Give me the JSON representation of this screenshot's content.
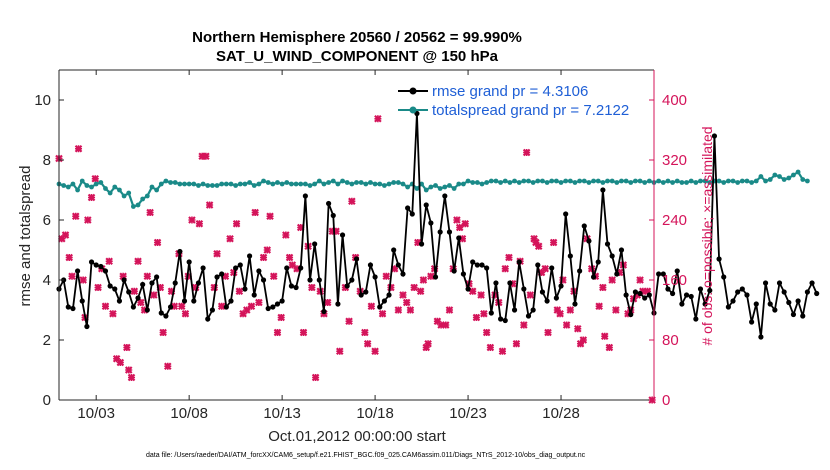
{
  "chart_data": {
    "type": "line",
    "title": "Northern Hemisphere 20560 / 20562 = 99.990%",
    "subtitle": "SAT_U_WIND_COMPONENT @ 150 hPa",
    "xlabel": "Oct.01,2012 00:00:00 start",
    "ylabel": "rmse and totalspread",
    "ylabel_right": "# of obs: o=possible; ×=assimilated",
    "xlim": [
      1,
      33
    ],
    "ylim": [
      0,
      11
    ],
    "ylim_right": [
      0,
      440
    ],
    "x_tick_labels": [
      "10/03",
      "10/08",
      "10/13",
      "10/18",
      "10/23",
      "10/28"
    ],
    "x_tick_values": [
      3,
      8,
      13,
      18,
      23,
      28
    ],
    "y_ticks": [
      0,
      2,
      4,
      6,
      8,
      10
    ],
    "y_ticks_right": [
      0,
      80,
      160,
      240,
      320,
      400
    ],
    "legend_position": "top-right",
    "colors": {
      "rmse": "#000000",
      "spread": "#1a8a88",
      "obs": "#d4145a",
      "legend_text": "#1f5fd6",
      "right_axis": "#d4145a"
    },
    "series": [
      {
        "name": "rmse grand pr = 4.3106",
        "color": "#000000",
        "marker": "dot",
        "x_start": 1.0,
        "x_step": 0.25,
        "values": [
          3.7,
          4.0,
          3.1,
          3.05,
          4.3,
          3.3,
          2.45,
          4.6,
          4.5,
          4.45,
          4.3,
          3.8,
          3.7,
          3.3,
          4.0,
          3.6,
          3.1,
          3.4,
          3.85,
          3.0,
          3.9,
          4.1,
          2.9,
          2.8,
          3.1,
          3.9,
          4.95,
          3.3,
          4.6,
          3.3,
          3.9,
          4.4,
          2.7,
          3.0,
          4.1,
          4.2,
          3.1,
          3.3,
          4.4,
          4.5,
          3.7,
          4.8,
          3.5,
          4.3,
          4.0,
          3.05,
          3.1,
          3.2,
          3.3,
          4.4,
          3.8,
          3.75,
          4.4,
          6.8,
          4.0,
          5.2,
          4.0,
          2.95,
          6.55,
          6.15,
          3.2,
          5.5,
          3.8,
          4.0,
          4.7,
          3.5,
          3.6,
          4.5,
          4.1,
          3.1,
          3.3,
          3.5,
          5.0,
          4.5,
          4.2,
          6.4,
          6.2,
          9.55,
          5.2,
          6.5,
          5.9,
          4.1,
          5.6,
          6.8,
          5.6,
          4.3,
          5.4,
          4.2,
          3.7,
          4.6,
          4.5,
          4.5,
          4.4,
          2.9,
          3.9,
          2.7,
          2.65,
          3.9,
          3.0,
          4.6,
          3.7,
          2.8,
          3.0,
          4.5,
          3.6,
          3.3,
          4.4,
          3.4,
          3.8,
          6.2,
          4.8,
          3.2,
          4.3,
          5.8,
          5.3,
          4.1,
          4.6,
          7.0,
          5.2,
          4.8,
          4.2,
          5.0,
          3.5,
          2.85,
          3.6,
          3.55,
          3.4,
          3.5,
          2.9,
          4.2,
          4.2,
          3.7,
          3.55,
          4.3,
          3.2,
          3.5,
          3.45,
          2.7,
          3.7,
          3.2,
          3.65,
          8.8,
          4.7,
          4.1,
          3.1,
          3.3,
          3.6,
          3.7,
          3.5,
          2.6,
          3.2,
          2.1,
          3.9,
          3.2,
          3.0,
          3.9,
          3.6,
          3.25,
          2.85,
          3.3,
          2.8,
          3.6,
          3.9,
          3.55
        ]
      },
      {
        "name": "totalspread grand pr = 7.2122",
        "color": "#1a8a88",
        "marker": "dot",
        "x_start": 1.0,
        "x_step": 0.25,
        "values": [
          7.2,
          7.15,
          7.1,
          7.2,
          7.0,
          7.3,
          7.15,
          7.1,
          7.2,
          7.25,
          7.05,
          6.9,
          7.1,
          7.0,
          6.8,
          6.9,
          6.45,
          6.5,
          6.7,
          6.8,
          7.1,
          7.0,
          7.2,
          7.3,
          7.25,
          7.25,
          7.2,
          7.2,
          7.2,
          7.2,
          7.15,
          7.2,
          7.15,
          7.15,
          7.15,
          7.2,
          7.2,
          7.2,
          7.15,
          7.2,
          7.2,
          7.25,
          7.15,
          7.2,
          7.3,
          7.25,
          7.2,
          7.25,
          7.2,
          7.25,
          7.2,
          7.2,
          7.2,
          7.2,
          7.15,
          7.2,
          7.3,
          7.2,
          7.25,
          7.3,
          7.2,
          7.3,
          7.25,
          7.2,
          7.25,
          7.25,
          7.2,
          7.25,
          7.2,
          7.2,
          7.15,
          7.2,
          7.25,
          7.25,
          7.2,
          7.1,
          7.2,
          7.05,
          7.2,
          7.0,
          7.1,
          7.15,
          7.05,
          7.1,
          7.15,
          7.05,
          7.2,
          7.2,
          7.3,
          7.25,
          7.25,
          7.2,
          7.25,
          7.3,
          7.3,
          7.25,
          7.3,
          7.25,
          7.3,
          7.25,
          7.3,
          7.3,
          7.25,
          7.3,
          7.3,
          7.25,
          7.3,
          7.3,
          7.25,
          7.3,
          7.3,
          7.25,
          7.3,
          7.3,
          7.25,
          7.3,
          7.3,
          7.25,
          7.3,
          7.3,
          7.25,
          7.3,
          7.3,
          7.25,
          7.3,
          7.3,
          7.25,
          7.3,
          7.25,
          7.3,
          7.25,
          7.3,
          7.25,
          7.3,
          7.25,
          7.25,
          7.3,
          7.25,
          7.3,
          7.3,
          7.25,
          7.3,
          7.3,
          7.25,
          7.3,
          7.3,
          7.25,
          7.3,
          7.3,
          7.25,
          7.3,
          7.45,
          7.3,
          7.35,
          7.5,
          7.45,
          7.35,
          7.4,
          7.5,
          7.6,
          7.35,
          7.3
        ]
      },
      {
        "name": "# of obs assimilated",
        "color": "#d4145a",
        "marker": "x",
        "axis": "right",
        "points": [
          [
            1.0,
            322
          ],
          [
            1.15,
            215
          ],
          [
            1.35,
            220
          ],
          [
            1.55,
            190
          ],
          [
            1.7,
            165
          ],
          [
            1.9,
            245
          ],
          [
            2.05,
            335
          ],
          [
            2.3,
            160
          ],
          [
            2.4,
            110
          ],
          [
            2.55,
            240
          ],
          [
            2.75,
            270
          ],
          [
            2.95,
            295
          ],
          [
            3.1,
            150
          ],
          [
            3.3,
            175
          ],
          [
            3.5,
            125
          ],
          [
            3.7,
            185
          ],
          [
            3.9,
            115
          ],
          [
            4.1,
            55
          ],
          [
            4.3,
            50
          ],
          [
            4.45,
            165
          ],
          [
            4.65,
            70
          ],
          [
            4.75,
            40
          ],
          [
            4.9,
            30
          ],
          [
            5.05,
            145
          ],
          [
            5.25,
            185
          ],
          [
            5.4,
            130
          ],
          [
            5.6,
            120
          ],
          [
            5.75,
            165
          ],
          [
            5.9,
            250
          ],
          [
            6.1,
            140
          ],
          [
            6.3,
            210
          ],
          [
            6.45,
            150
          ],
          [
            6.6,
            90
          ],
          [
            6.85,
            45
          ],
          [
            7.05,
            145
          ],
          [
            7.2,
            125
          ],
          [
            7.45,
            195
          ],
          [
            7.6,
            125
          ],
          [
            7.8,
            115
          ],
          [
            7.95,
            165
          ],
          [
            8.15,
            240
          ],
          [
            8.35,
            150
          ],
          [
            8.55,
            235
          ],
          [
            8.7,
            325
          ],
          [
            8.9,
            325
          ],
          [
            9.1,
            260
          ],
          [
            9.35,
            150
          ],
          [
            9.5,
            195
          ],
          [
            9.75,
            125
          ],
          [
            9.95,
            165
          ],
          [
            10.2,
            215
          ],
          [
            10.4,
            170
          ],
          [
            10.55,
            235
          ],
          [
            10.7,
            145
          ],
          [
            10.9,
            115
          ],
          [
            11.1,
            120
          ],
          [
            11.35,
            125
          ],
          [
            11.55,
            250
          ],
          [
            11.75,
            130
          ],
          [
            12.0,
            190
          ],
          [
            12.2,
            200
          ],
          [
            12.35,
            245
          ],
          [
            12.55,
            165
          ],
          [
            12.75,
            90
          ],
          [
            12.95,
            110
          ],
          [
            13.2,
            220
          ],
          [
            13.4,
            190
          ],
          [
            13.55,
            180
          ],
          [
            13.8,
            175
          ],
          [
            14.0,
            230
          ],
          [
            14.15,
            90
          ],
          [
            14.4,
            205
          ],
          [
            14.6,
            150
          ],
          [
            14.8,
            30
          ],
          [
            15.05,
            145
          ],
          [
            15.25,
            115
          ],
          [
            15.45,
            130
          ],
          [
            15.7,
            225
          ],
          [
            15.9,
            225
          ],
          [
            16.1,
            65
          ],
          [
            16.4,
            150
          ],
          [
            16.6,
            105
          ],
          [
            16.75,
            265
          ],
          [
            16.95,
            190
          ],
          [
            17.2,
            145
          ],
          [
            17.45,
            90
          ],
          [
            17.6,
            75
          ],
          [
            17.8,
            125
          ],
          [
            18.0,
            65
          ],
          [
            18.15,
            375
          ],
          [
            18.4,
            115
          ],
          [
            18.6,
            165
          ],
          [
            18.85,
            150
          ],
          [
            19.05,
            175
          ],
          [
            19.25,
            120
          ],
          [
            19.5,
            140
          ],
          [
            19.7,
            130
          ],
          [
            19.9,
            120
          ],
          [
            20.1,
            150
          ],
          [
            20.3,
            210
          ],
          [
            20.45,
            145
          ],
          [
            20.6,
            160
          ],
          [
            20.75,
            70
          ],
          [
            20.85,
            75
          ],
          [
            21.0,
            165
          ],
          [
            21.2,
            175
          ],
          [
            21.35,
            105
          ],
          [
            21.55,
            100
          ],
          [
            21.8,
            100
          ],
          [
            22.0,
            120
          ],
          [
            22.2,
            175
          ],
          [
            22.4,
            240
          ],
          [
            22.55,
            230
          ],
          [
            22.7,
            215
          ],
          [
            22.85,
            235
          ],
          [
            23.05,
            155
          ],
          [
            23.25,
            145
          ],
          [
            23.45,
            110
          ],
          [
            23.7,
            140
          ],
          [
            23.85,
            115
          ],
          [
            24.0,
            90
          ],
          [
            24.2,
            70
          ],
          [
            24.45,
            140
          ],
          [
            24.65,
            130
          ],
          [
            24.85,
            65
          ],
          [
            25.0,
            175
          ],
          [
            25.2,
            190
          ],
          [
            25.4,
            155
          ],
          [
            25.6,
            75
          ],
          [
            25.8,
            185
          ],
          [
            26.0,
            100
          ],
          [
            26.15,
            330
          ],
          [
            26.35,
            140
          ],
          [
            26.55,
            215
          ],
          [
            26.65,
            210
          ],
          [
            26.8,
            205
          ],
          [
            26.95,
            170
          ],
          [
            27.15,
            175
          ],
          [
            27.3,
            90
          ],
          [
            27.6,
            210
          ],
          [
            27.8,
            120
          ],
          [
            27.95,
            115
          ],
          [
            28.1,
            160
          ],
          [
            28.3,
            100
          ],
          [
            28.5,
            120
          ],
          [
            28.7,
            145
          ],
          [
            28.9,
            95
          ],
          [
            29.05,
            75
          ],
          [
            29.2,
            80
          ],
          [
            29.4,
            215
          ],
          [
            29.65,
            175
          ],
          [
            29.85,
            165
          ],
          [
            30.05,
            125
          ],
          [
            30.25,
            150
          ],
          [
            30.35,
            85
          ],
          [
            30.6,
            70
          ],
          [
            30.75,
            160
          ],
          [
            30.95,
            120
          ],
          [
            31.15,
            170
          ],
          [
            31.35,
            180
          ],
          [
            31.6,
            115
          ],
          [
            31.75,
            120
          ],
          [
            31.9,
            135
          ],
          [
            32.1,
            140
          ],
          [
            32.25,
            160
          ],
          [
            32.4,
            145
          ],
          [
            32.65,
            145
          ],
          [
            32.9,
            0
          ]
        ]
      }
    ],
    "footnote": "data file: /Users/raeder/DAI/ATM_forcXX/CAM6_setup/f.e21.FHIST_BGC.f09_025.CAM6assim.011/Diags_NTrS_2012-10/obs_diag_output.nc"
  }
}
